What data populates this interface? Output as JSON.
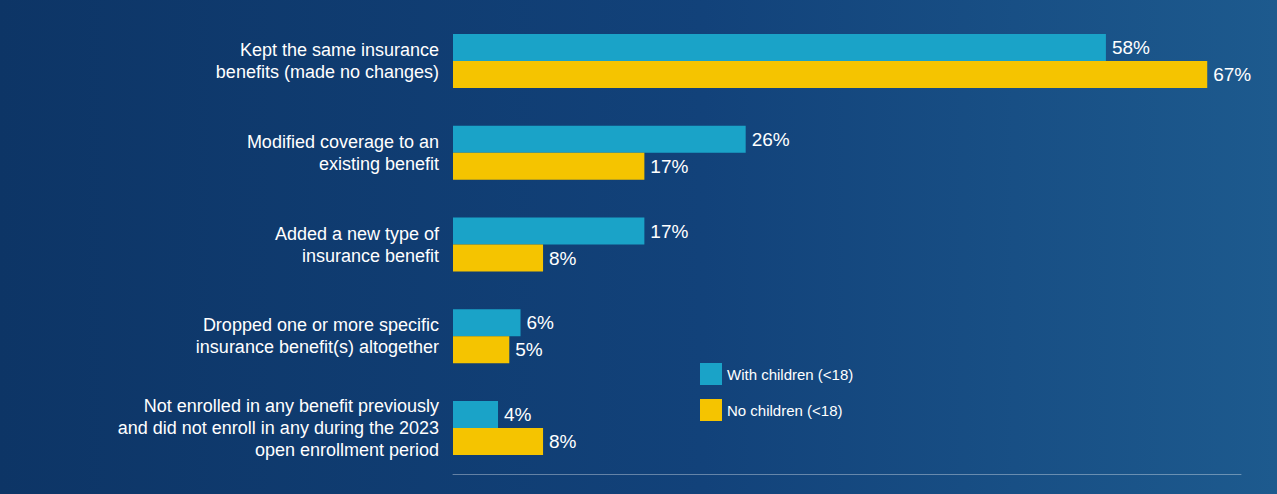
{
  "chart_data": {
    "type": "bar",
    "orientation": "horizontal",
    "categories": [
      "Kept the same insurance benefits (made no changes)",
      "Modified coverage to an existing benefit",
      "Added a new type of insurance benefit",
      "Dropped one or more specific insurance benefit(s) altogether",
      "Not enrolled in any benefit previously and did not enroll in any during the 2023 open enrollment period"
    ],
    "series": [
      {
        "name": "With children (<18)",
        "color": "#1aa3c8",
        "values": [
          58,
          26,
          17,
          6,
          4
        ],
        "value_labels": [
          "58%",
          "26%",
          "17%",
          "6%",
          "4%"
        ]
      },
      {
        "name": "No children (<18)",
        "color": "#f5c400",
        "values": [
          67,
          17,
          8,
          5,
          8
        ],
        "value_labels": [
          "67%",
          "17%",
          "8%",
          "5%",
          "8%"
        ]
      }
    ],
    "xlim": [
      0,
      70
    ],
    "data_labels": true,
    "tick_labels": "y",
    "grid": false,
    "legend": "bottom"
  }
}
